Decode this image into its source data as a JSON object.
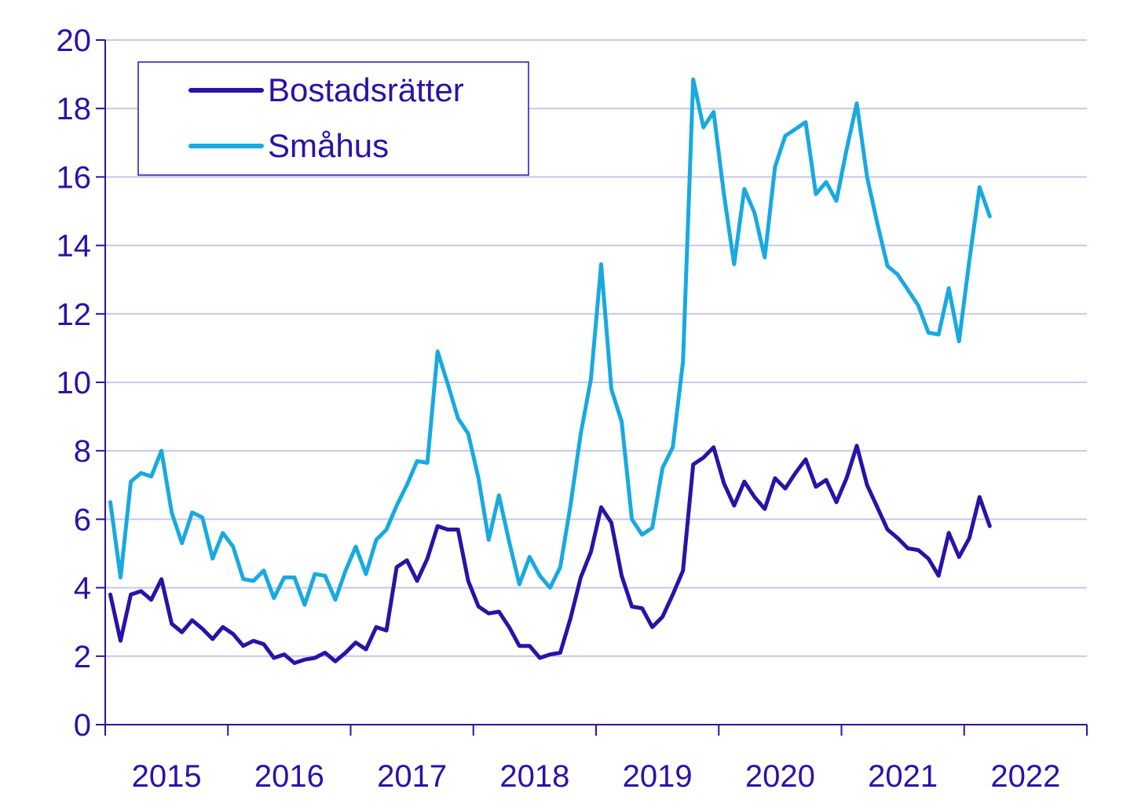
{
  "colors": {
    "axis": "#2A12A8",
    "grid": "#C9C6E8",
    "bostadsratter": "#2A12A8",
    "smahus": "#18A9E1",
    "text": "#2A12A8"
  },
  "legend": {
    "placement": "top-left",
    "items": [
      {
        "label": "Bostadsrätter",
        "series": "bostadsratter"
      },
      {
        "label": "Småhus",
        "series": "smahus"
      }
    ]
  },
  "chart_data": {
    "type": "line",
    "title": "",
    "xlabel": "",
    "ylabel": "",
    "ylim": [
      0,
      20
    ],
    "yticks": [
      0,
      2,
      4,
      6,
      8,
      10,
      12,
      14,
      16,
      18,
      20
    ],
    "xlim": [
      2015,
      2023
    ],
    "xtick_labels": [
      "2015",
      "2016",
      "2017",
      "2018",
      "2019",
      "2020",
      "2021",
      "2022"
    ],
    "grid": true,
    "x_unit": "month",
    "start": "2015-01",
    "series": [
      {
        "name": "Bostadsrätter",
        "color_key": "bostadsratter",
        "values": [
          3.8,
          2.45,
          3.8,
          3.9,
          3.65,
          4.25,
          2.95,
          2.7,
          3.05,
          2.8,
          2.5,
          2.85,
          2.65,
          2.3,
          2.45,
          2.35,
          1.95,
          2.05,
          1.8,
          1.9,
          1.95,
          2.1,
          1.85,
          2.1,
          2.4,
          2.2,
          2.85,
          2.75,
          4.6,
          4.8,
          4.2,
          4.85,
          5.8,
          5.7,
          5.7,
          4.2,
          3.45,
          3.25,
          3.3,
          2.85,
          2.3,
          2.3,
          1.95,
          2.05,
          2.1,
          3.1,
          4.3,
          5.05,
          6.35,
          5.9,
          4.35,
          3.45,
          3.4,
          2.85,
          3.15,
          3.8,
          4.5,
          7.6,
          7.8,
          8.1,
          7.05,
          6.4,
          7.1,
          6.65,
          6.3,
          7.2,
          6.9,
          7.35,
          7.75,
          6.95,
          7.15,
          6.5,
          7.2,
          8.15,
          7.0,
          6.35,
          5.7,
          5.45,
          5.15,
          5.1,
          4.85,
          4.35,
          5.6,
          4.9,
          5.45,
          6.65,
          5.8
        ]
      },
      {
        "name": "Småhus",
        "color_key": "smahus",
        "values": [
          6.5,
          4.3,
          7.1,
          7.35,
          7.25,
          8.0,
          6.2,
          5.3,
          6.2,
          6.05,
          4.85,
          5.6,
          5.2,
          4.25,
          4.2,
          4.5,
          3.7,
          4.3,
          4.3,
          3.5,
          4.4,
          4.35,
          3.65,
          4.5,
          5.2,
          4.4,
          5.4,
          5.7,
          6.4,
          7.0,
          7.7,
          7.65,
          10.9,
          9.95,
          8.95,
          8.5,
          7.2,
          5.4,
          6.7,
          5.35,
          4.1,
          4.9,
          4.35,
          4.0,
          4.6,
          6.4,
          8.5,
          10.1,
          13.45,
          9.8,
          8.85,
          6.0,
          5.55,
          5.75,
          7.5,
          8.1,
          10.6,
          18.85,
          17.45,
          17.9,
          15.5,
          13.45,
          15.65,
          14.95,
          13.65,
          16.3,
          17.2,
          17.4,
          17.6,
          15.5,
          15.85,
          15.3,
          16.8,
          18.15,
          16.0,
          14.65,
          13.4,
          13.15,
          12.7,
          12.25,
          11.45,
          11.4,
          12.75,
          11.2,
          13.55,
          15.7,
          14.85
        ]
      }
    ]
  }
}
